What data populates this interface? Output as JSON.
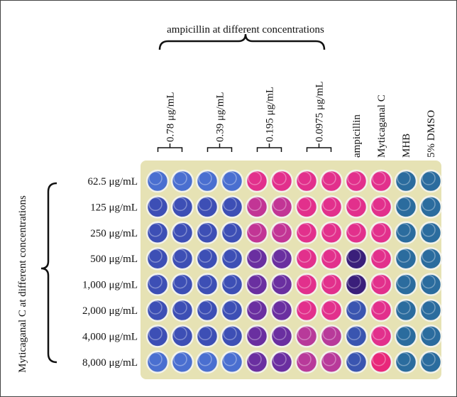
{
  "header": {
    "title": "ampicillin at different concentrations"
  },
  "columns": [
    "0.78 μg/mL",
    "0.39 μg/mL",
    "0.195 μg/mL",
    "0.0975 μg/mL",
    "ampicillin",
    "Myticaganal C",
    "MHB",
    "5% DMSO"
  ],
  "side": {
    "title": "Myticaganal C at different concentrations"
  },
  "rows": [
    "62.5 μg/mL",
    "125 μg/mL",
    "250 μg/mL",
    "500 μg/mL",
    "1,000 μg/mL",
    "2,000 μg/mL",
    "4,000 μg/mL",
    "8,000 μg/mL"
  ]
}
